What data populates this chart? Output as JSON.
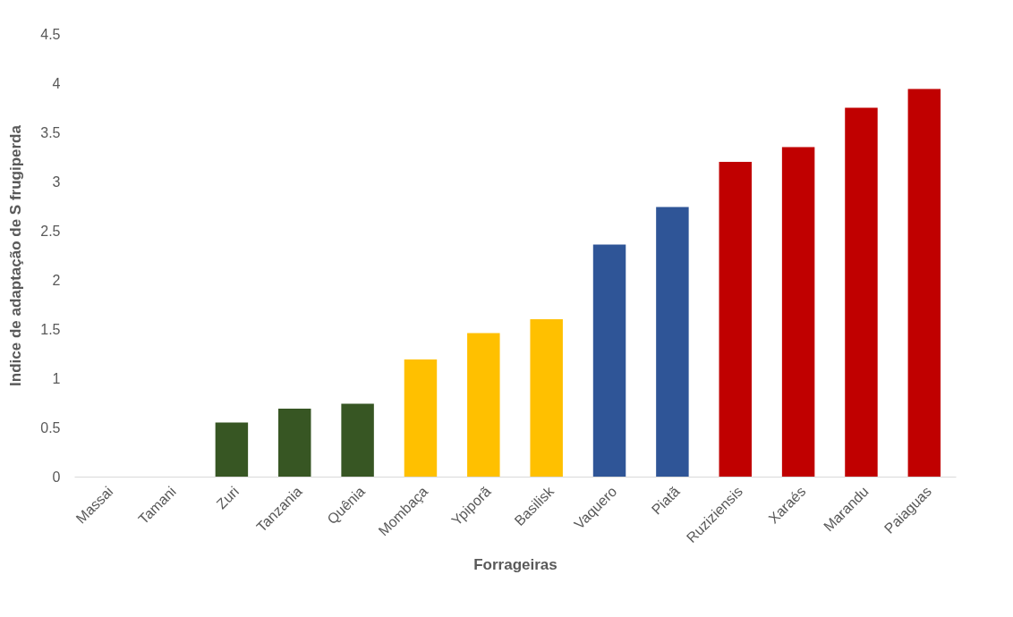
{
  "chart_data": {
    "type": "bar",
    "xlabel": "Forrageiras",
    "ylabel": "Indice de adaptação de S frugiperda",
    "categories": [
      "Massai",
      "Tamani",
      "Zuri",
      "Tanzania",
      "Quênia",
      "Mombaça",
      "Ypiporã",
      "Basilisk",
      "Vaquero",
      "Piatã",
      "Ruziziensis",
      "Xaraés",
      "Marandu",
      "Paiaguas"
    ],
    "values": [
      0,
      0,
      0.55,
      0.69,
      0.74,
      1.19,
      1.46,
      1.6,
      2.36,
      2.74,
      3.2,
      3.35,
      3.75,
      3.94
    ],
    "colors": [
      "#375623",
      "#375623",
      "#375623",
      "#375623",
      "#375623",
      "#ffc000",
      "#ffc000",
      "#ffc000",
      "#2f5597",
      "#2f5597",
      "#c00000",
      "#c00000",
      "#c00000",
      "#c00000"
    ],
    "ylim": [
      0,
      4.5
    ],
    "yticks": [
      0,
      0.5,
      1,
      1.5,
      2,
      2.5,
      3,
      3.5,
      4,
      4.5
    ],
    "grid": false,
    "legend": false
  }
}
